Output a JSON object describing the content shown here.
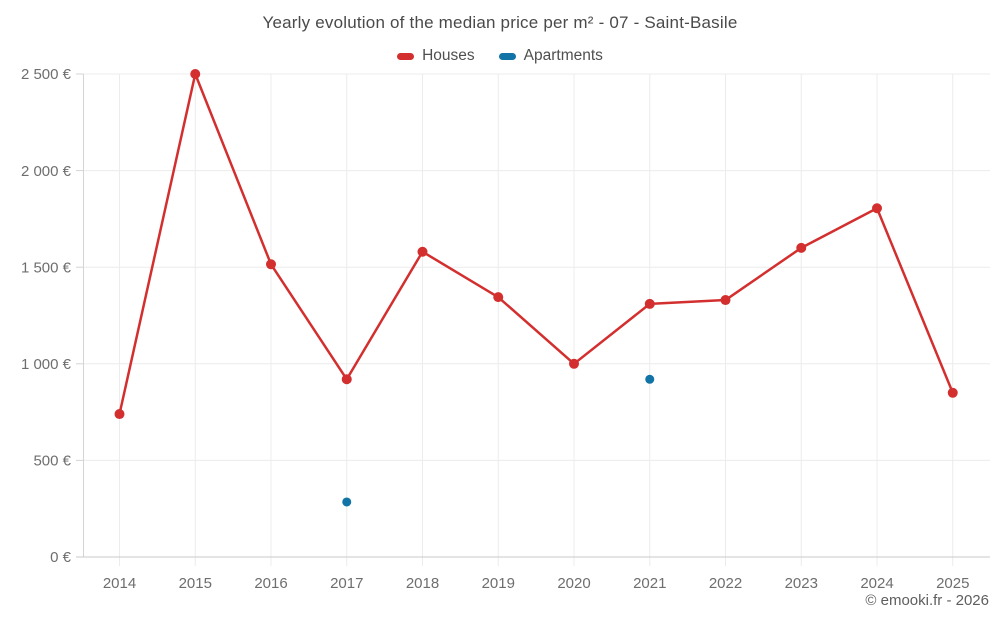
{
  "chart": {
    "title": "Yearly evolution of the median price per m² - 07 - Saint-Basile",
    "footer": "© emooki.fr - 2026",
    "series_labels": {
      "houses": "Houses",
      "apartments": "Apartments"
    },
    "colors": {
      "houses": "#d32f2f",
      "apartments": "#1173a6",
      "grid": "#ececec",
      "axis": "#d4d4d4",
      "axis_bottom": "#c9c9c9",
      "tick_label": "#6e6e6e",
      "title": "#4a4a4a"
    }
  },
  "chart_data": {
    "type": "line",
    "title": "Yearly evolution of the median price per m² - 07 - Saint-Basile",
    "categories": [
      "2014",
      "2015",
      "2016",
      "2017",
      "2018",
      "2019",
      "2020",
      "2021",
      "2022",
      "2023",
      "2024",
      "2025"
    ],
    "series": [
      {
        "name": "Houses",
        "type": "line",
        "color": "#d32f2f",
        "values": [
          740,
          2500,
          1515,
          920,
          1580,
          1345,
          1000,
          1310,
          1330,
          1600,
          1805,
          850
        ]
      },
      {
        "name": "Apartments",
        "type": "scatter",
        "color": "#1173a6",
        "values": [
          null,
          null,
          null,
          285,
          null,
          null,
          null,
          920,
          null,
          null,
          null,
          null
        ]
      }
    ],
    "xlabel": "",
    "ylabel": "",
    "ylim": [
      0,
      2500
    ],
    "ytick_step": 500,
    "ytick_labels": [
      "0 €",
      "500 €",
      "1 000 €",
      "1 500 €",
      "2 000 €",
      "2 500 €"
    ],
    "grid": true,
    "legend_position": "top"
  }
}
